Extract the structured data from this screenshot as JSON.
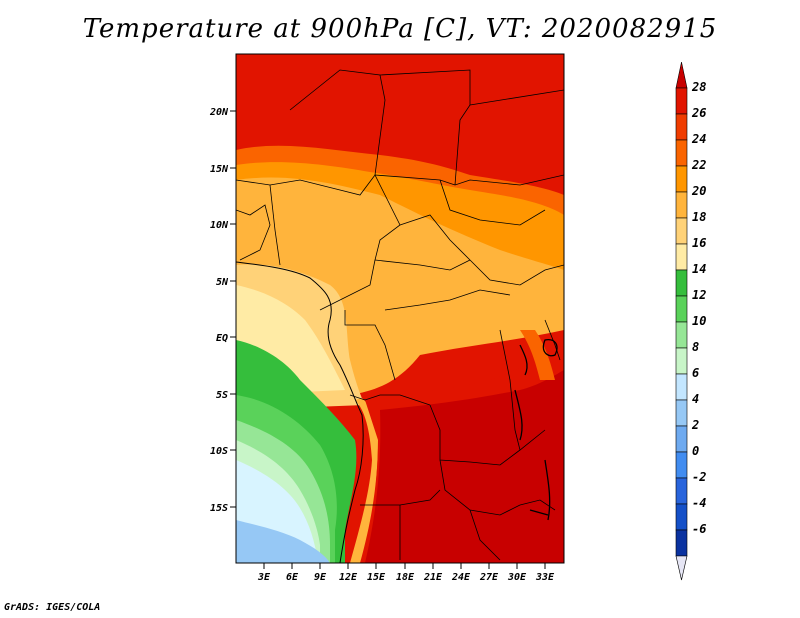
{
  "title": "Temperature at 900hPa [C], VT: 2020082915",
  "footer": "GrADS: IGES/COLA",
  "map": {
    "lat_labels": [
      "20N",
      "15N",
      "10N",
      "5N",
      "EQ",
      "5S",
      "10S",
      "15S"
    ],
    "lon_labels": [
      "3E",
      "6E",
      "9E",
      "12E",
      "15E",
      "18E",
      "21E",
      "24E",
      "27E",
      "30E",
      "33E"
    ]
  },
  "colorbar": {
    "levels": [
      "28",
      "26",
      "24",
      "22",
      "20",
      "18",
      "16",
      "14",
      "12",
      "10",
      "8",
      "6",
      "4",
      "2",
      "0",
      "-2",
      "-4",
      "-6"
    ],
    "colors": [
      "#c80000",
      "#e11400",
      "#f03c00",
      "#fa6400",
      "#ff9600",
      "#ffb43c",
      "#ffd278",
      "#ffeba5",
      "#35be3c",
      "#5ad25a",
      "#96e696",
      "#c8f5c8",
      "#c3e6ff",
      "#96c8f5",
      "#6eaaf0",
      "#418cf0",
      "#2864dc",
      "#1450c8",
      "#0a32a0",
      "#000a82"
    ]
  }
}
